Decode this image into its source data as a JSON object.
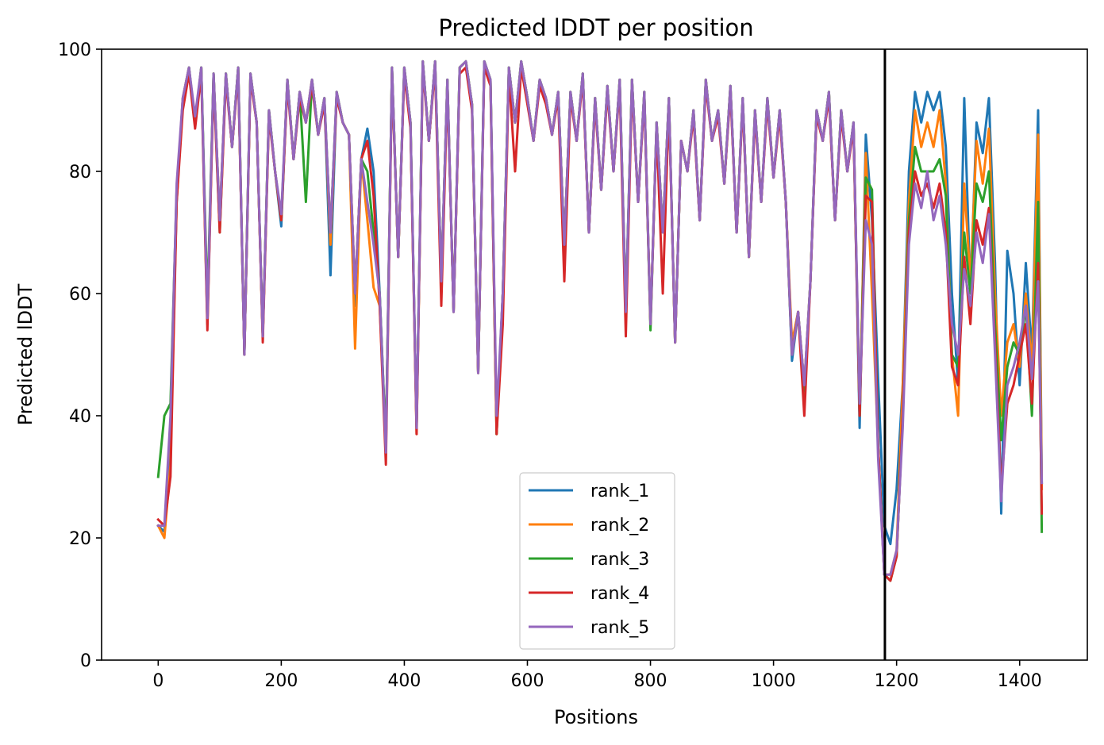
{
  "chart_data": {
    "type": "line",
    "title": "Predicted lDDT per position",
    "xlabel": "Positions",
    "ylabel": "Predicted lDDT",
    "xlim": [
      -92,
      1510
    ],
    "ylim": [
      0,
      100
    ],
    "x_ticks": [
      0,
      200,
      400,
      600,
      800,
      1000,
      1200,
      1400
    ],
    "y_ticks": [
      0,
      20,
      40,
      60,
      80,
      100
    ],
    "grid": false,
    "legend_position": "lower center",
    "vline_x": 1181,
    "colors": {
      "rank_1": "#1f77b4",
      "rank_2": "#ff7f0e",
      "rank_3": "#2ca02c",
      "rank_4": "#d62728",
      "rank_5": "#9467bd",
      "vline": "#000000"
    },
    "x": [
      0,
      10,
      20,
      30,
      40,
      50,
      60,
      70,
      80,
      90,
      100,
      110,
      120,
      130,
      140,
      150,
      160,
      170,
      180,
      190,
      200,
      210,
      220,
      230,
      240,
      250,
      260,
      270,
      280,
      290,
      300,
      310,
      320,
      330,
      340,
      350,
      360,
      370,
      380,
      390,
      400,
      410,
      420,
      430,
      440,
      450,
      460,
      470,
      480,
      490,
      500,
      510,
      520,
      530,
      540,
      550,
      560,
      570,
      580,
      590,
      600,
      610,
      620,
      630,
      640,
      650,
      660,
      670,
      680,
      690,
      700,
      710,
      720,
      730,
      740,
      750,
      760,
      770,
      780,
      790,
      800,
      810,
      820,
      830,
      840,
      850,
      860,
      870,
      880,
      890,
      900,
      910,
      920,
      930,
      940,
      950,
      960,
      970,
      980,
      990,
      1000,
      1010,
      1020,
      1030,
      1040,
      1050,
      1060,
      1070,
      1080,
      1090,
      1100,
      1110,
      1120,
      1130,
      1140,
      1150,
      1160,
      1170,
      1180,
      1190,
      1200,
      1210,
      1220,
      1230,
      1240,
      1250,
      1260,
      1270,
      1280,
      1290,
      1300,
      1310,
      1320,
      1330,
      1340,
      1350,
      1360,
      1370,
      1380,
      1390,
      1400,
      1410,
      1420,
      1430,
      1436
    ],
    "series": [
      {
        "name": "rank_1",
        "values": [
          22,
          21,
          35,
          75,
          92,
          97,
          88,
          97,
          55,
          96,
          72,
          96,
          84,
          97,
          50,
          96,
          88,
          53,
          90,
          80,
          71,
          95,
          82,
          93,
          88,
          95,
          86,
          92,
          63,
          93,
          88,
          86,
          58,
          82,
          87,
          80,
          60,
          35,
          97,
          66,
          97,
          88,
          38,
          98,
          85,
          98,
          62,
          95,
          57,
          97,
          98,
          91,
          47,
          98,
          95,
          38,
          60,
          97,
          88,
          98,
          92,
          85,
          95,
          92,
          86,
          93,
          68,
          93,
          85,
          96,
          70,
          92,
          77,
          94,
          80,
          95,
          58,
          95,
          75,
          93,
          55,
          88,
          70,
          92,
          52,
          85,
          80,
          90,
          72,
          95,
          85,
          90,
          78,
          94,
          70,
          92,
          66,
          90,
          75,
          92,
          79,
          90,
          75,
          49,
          57,
          45,
          62,
          90,
          85,
          93,
          72,
          90,
          80,
          88,
          38,
          86,
          72,
          46,
          22,
          19,
          28,
          45,
          80,
          93,
          88,
          93,
          90,
          93,
          84,
          60,
          45,
          92,
          60,
          88,
          83,
          92,
          65,
          24,
          67,
          60,
          45,
          65,
          50,
          90,
          29
        ]
      },
      {
        "name": "rank_2",
        "values": [
          22,
          20,
          32,
          76,
          92,
          97,
          88,
          97,
          55,
          96,
          72,
          96,
          84,
          97,
          50,
          96,
          88,
          53,
          90,
          80,
          72,
          95,
          82,
          93,
          88,
          95,
          86,
          92,
          68,
          93,
          88,
          86,
          51,
          82,
          72,
          61,
          58,
          35,
          97,
          66,
          97,
          88,
          37,
          98,
          85,
          98,
          62,
          95,
          57,
          97,
          98,
          91,
          47,
          98,
          95,
          37,
          60,
          97,
          88,
          98,
          92,
          85,
          95,
          92,
          86,
          93,
          68,
          93,
          85,
          96,
          70,
          92,
          77,
          94,
          80,
          95,
          57,
          95,
          75,
          93,
          55,
          88,
          70,
          92,
          52,
          85,
          80,
          90,
          72,
          95,
          85,
          90,
          78,
          94,
          70,
          92,
          66,
          90,
          75,
          92,
          79,
          90,
          75,
          52,
          57,
          45,
          62,
          90,
          85,
          93,
          72,
          90,
          80,
          88,
          40,
          83,
          60,
          35,
          14,
          14,
          18,
          45,
          75,
          90,
          84,
          88,
          84,
          90,
          78,
          50,
          40,
          78,
          62,
          85,
          78,
          87,
          60,
          40,
          52,
          55,
          48,
          60,
          48,
          86,
          28
        ]
      },
      {
        "name": "rank_3",
        "values": [
          30,
          40,
          42,
          77,
          91,
          97,
          88,
          97,
          58,
          96,
          70,
          96,
          84,
          97,
          50,
          96,
          88,
          53,
          90,
          80,
          72,
          95,
          82,
          93,
          75,
          95,
          86,
          92,
          70,
          93,
          88,
          86,
          60,
          82,
          80,
          70,
          60,
          35,
          97,
          66,
          97,
          88,
          38,
          98,
          85,
          98,
          62,
          95,
          57,
          97,
          98,
          91,
          47,
          98,
          95,
          37,
          60,
          97,
          88,
          98,
          92,
          85,
          95,
          92,
          86,
          93,
          68,
          93,
          85,
          96,
          70,
          92,
          77,
          94,
          80,
          95,
          57,
          95,
          75,
          93,
          54,
          88,
          70,
          92,
          52,
          85,
          80,
          90,
          72,
          95,
          85,
          90,
          78,
          94,
          70,
          92,
          66,
          90,
          75,
          92,
          79,
          90,
          75,
          50,
          57,
          44,
          62,
          90,
          85,
          93,
          72,
          90,
          80,
          88,
          40,
          79,
          77,
          35,
          14,
          13,
          17,
          40,
          72,
          84,
          80,
          80,
          80,
          82,
          76,
          50,
          48,
          70,
          60,
          78,
          75,
          80,
          55,
          36,
          48,
          52,
          50,
          58,
          40,
          75,
          21
        ]
      },
      {
        "name": "rank_4",
        "values": [
          23,
          22,
          30,
          75,
          90,
          96,
          87,
          96,
          54,
          95,
          70,
          95,
          84,
          96,
          50,
          95,
          88,
          52,
          89,
          80,
          72,
          94,
          82,
          92,
          88,
          94,
          86,
          91,
          70,
          92,
          88,
          86,
          60,
          82,
          85,
          76,
          58,
          32,
          96,
          66,
          96,
          87,
          37,
          97,
          85,
          97,
          58,
          94,
          57,
          96,
          97,
          90,
          47,
          97,
          94,
          37,
          55,
          96,
          80,
          97,
          91,
          85,
          94,
          91,
          86,
          92,
          62,
          92,
          85,
          95,
          70,
          91,
          77,
          93,
          80,
          94,
          53,
          94,
          75,
          92,
          55,
          87,
          60,
          91,
          52,
          85,
          80,
          89,
          72,
          94,
          85,
          89,
          78,
          93,
          70,
          91,
          66,
          89,
          75,
          91,
          79,
          89,
          75,
          50,
          57,
          40,
          62,
          89,
          85,
          92,
          72,
          89,
          80,
          87,
          40,
          76,
          75,
          35,
          14,
          13,
          17,
          40,
          70,
          80,
          76,
          78,
          74,
          78,
          70,
          48,
          45,
          66,
          55,
          72,
          68,
          74,
          52,
          28,
          42,
          45,
          50,
          55,
          42,
          65,
          24
        ]
      },
      {
        "name": "rank_5",
        "values": [
          22,
          22,
          40,
          78,
          92,
          97,
          89,
          97,
          56,
          96,
          72,
          96,
          84,
          97,
          50,
          96,
          88,
          53,
          90,
          80,
          73,
          95,
          82,
          93,
          88,
          95,
          86,
          92,
          70,
          93,
          88,
          86,
          60,
          82,
          75,
          68,
          60,
          34,
          97,
          66,
          97,
          88,
          38,
          98,
          85,
          98,
          62,
          95,
          57,
          97,
          98,
          91,
          47,
          98,
          95,
          40,
          60,
          97,
          88,
          98,
          92,
          85,
          95,
          92,
          86,
          93,
          68,
          93,
          85,
          96,
          70,
          92,
          77,
          94,
          80,
          95,
          57,
          95,
          75,
          93,
          55,
          88,
          70,
          92,
          52,
          85,
          80,
          90,
          72,
          95,
          85,
          90,
          78,
          94,
          70,
          92,
          66,
          90,
          75,
          92,
          79,
          90,
          75,
          50,
          57,
          45,
          62,
          90,
          85,
          93,
          72,
          90,
          80,
          88,
          42,
          72,
          68,
          33,
          14,
          14,
          18,
          38,
          68,
          78,
          74,
          80,
          72,
          76,
          68,
          55,
          50,
          64,
          58,
          70,
          65,
          73,
          50,
          26,
          45,
          48,
          52,
          58,
          46,
          62,
          29
        ]
      }
    ]
  }
}
